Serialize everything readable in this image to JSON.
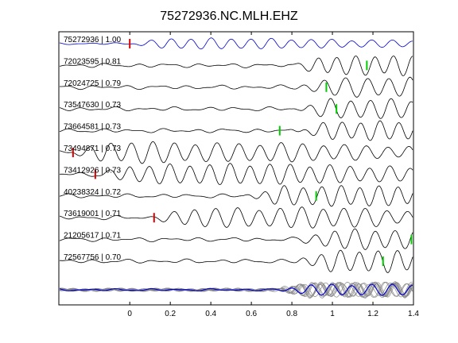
{
  "chart_data": {
    "type": "line",
    "title": "75272936.NC.MLH.EHZ",
    "xlabel": "",
    "ylabel": "",
    "xlim": [
      -0.35,
      1.4
    ],
    "x_ticks": [
      0,
      0.2,
      0.4,
      0.6,
      0.8,
      1,
      1.2,
      1.4
    ],
    "x_tick_labels": [
      "0",
      "0.2",
      "0.4",
      "0.6",
      "0.8",
      "1",
      "1.2",
      "1.4"
    ],
    "grid": false,
    "colors": {
      "reference_trace": "#0000cc",
      "trace": "#000000",
      "stack_trace": "#888888",
      "pick_reference": "#dd0000",
      "pick_predicted": "#00cc00"
    },
    "traces": [
      {
        "label": "75272936 | 1.00",
        "reference": true,
        "pick_time": 0.0,
        "pick_color": "red",
        "onset": 0.0
      },
      {
        "label": "72023595 | 0.81",
        "reference": false,
        "pick_time": 1.17,
        "pick_color": "green",
        "onset": 0.78
      },
      {
        "label": "72024725 | 0.79",
        "reference": false,
        "pick_time": 0.97,
        "pick_color": "green",
        "onset": 0.8
      },
      {
        "label": "73547630 | 0.73",
        "reference": false,
        "pick_time": 1.02,
        "pick_color": "green",
        "onset": 0.8
      },
      {
        "label": "73664581 | 0.73",
        "reference": false,
        "pick_time": 0.74,
        "pick_color": "green",
        "onset": 0.79
      },
      {
        "label": "73494871 | 0.73",
        "reference": false,
        "pick_time": -0.28,
        "pick_color": "red",
        "onset": -0.3
      },
      {
        "label": "73412926 | 0.73",
        "reference": false,
        "pick_time": -0.17,
        "pick_color": "red",
        "onset": -0.18
      },
      {
        "label": "40238324 | 0.72",
        "reference": false,
        "pick_time": 0.92,
        "pick_color": "green",
        "onset": 0.55
      },
      {
        "label": "73619001 | 0.71",
        "reference": false,
        "pick_time": 0.12,
        "pick_color": "red",
        "onset": 0.12
      },
      {
        "label": "21205617 | 0.71",
        "reference": false,
        "pick_time": 1.39,
        "pick_color": "green",
        "onset": 0.82
      },
      {
        "label": "72567756 | 0.70",
        "reference": false,
        "pick_time": 1.25,
        "pick_color": "green",
        "onset": 0.8
      }
    ],
    "stack": {
      "present": true,
      "count": 10
    }
  }
}
